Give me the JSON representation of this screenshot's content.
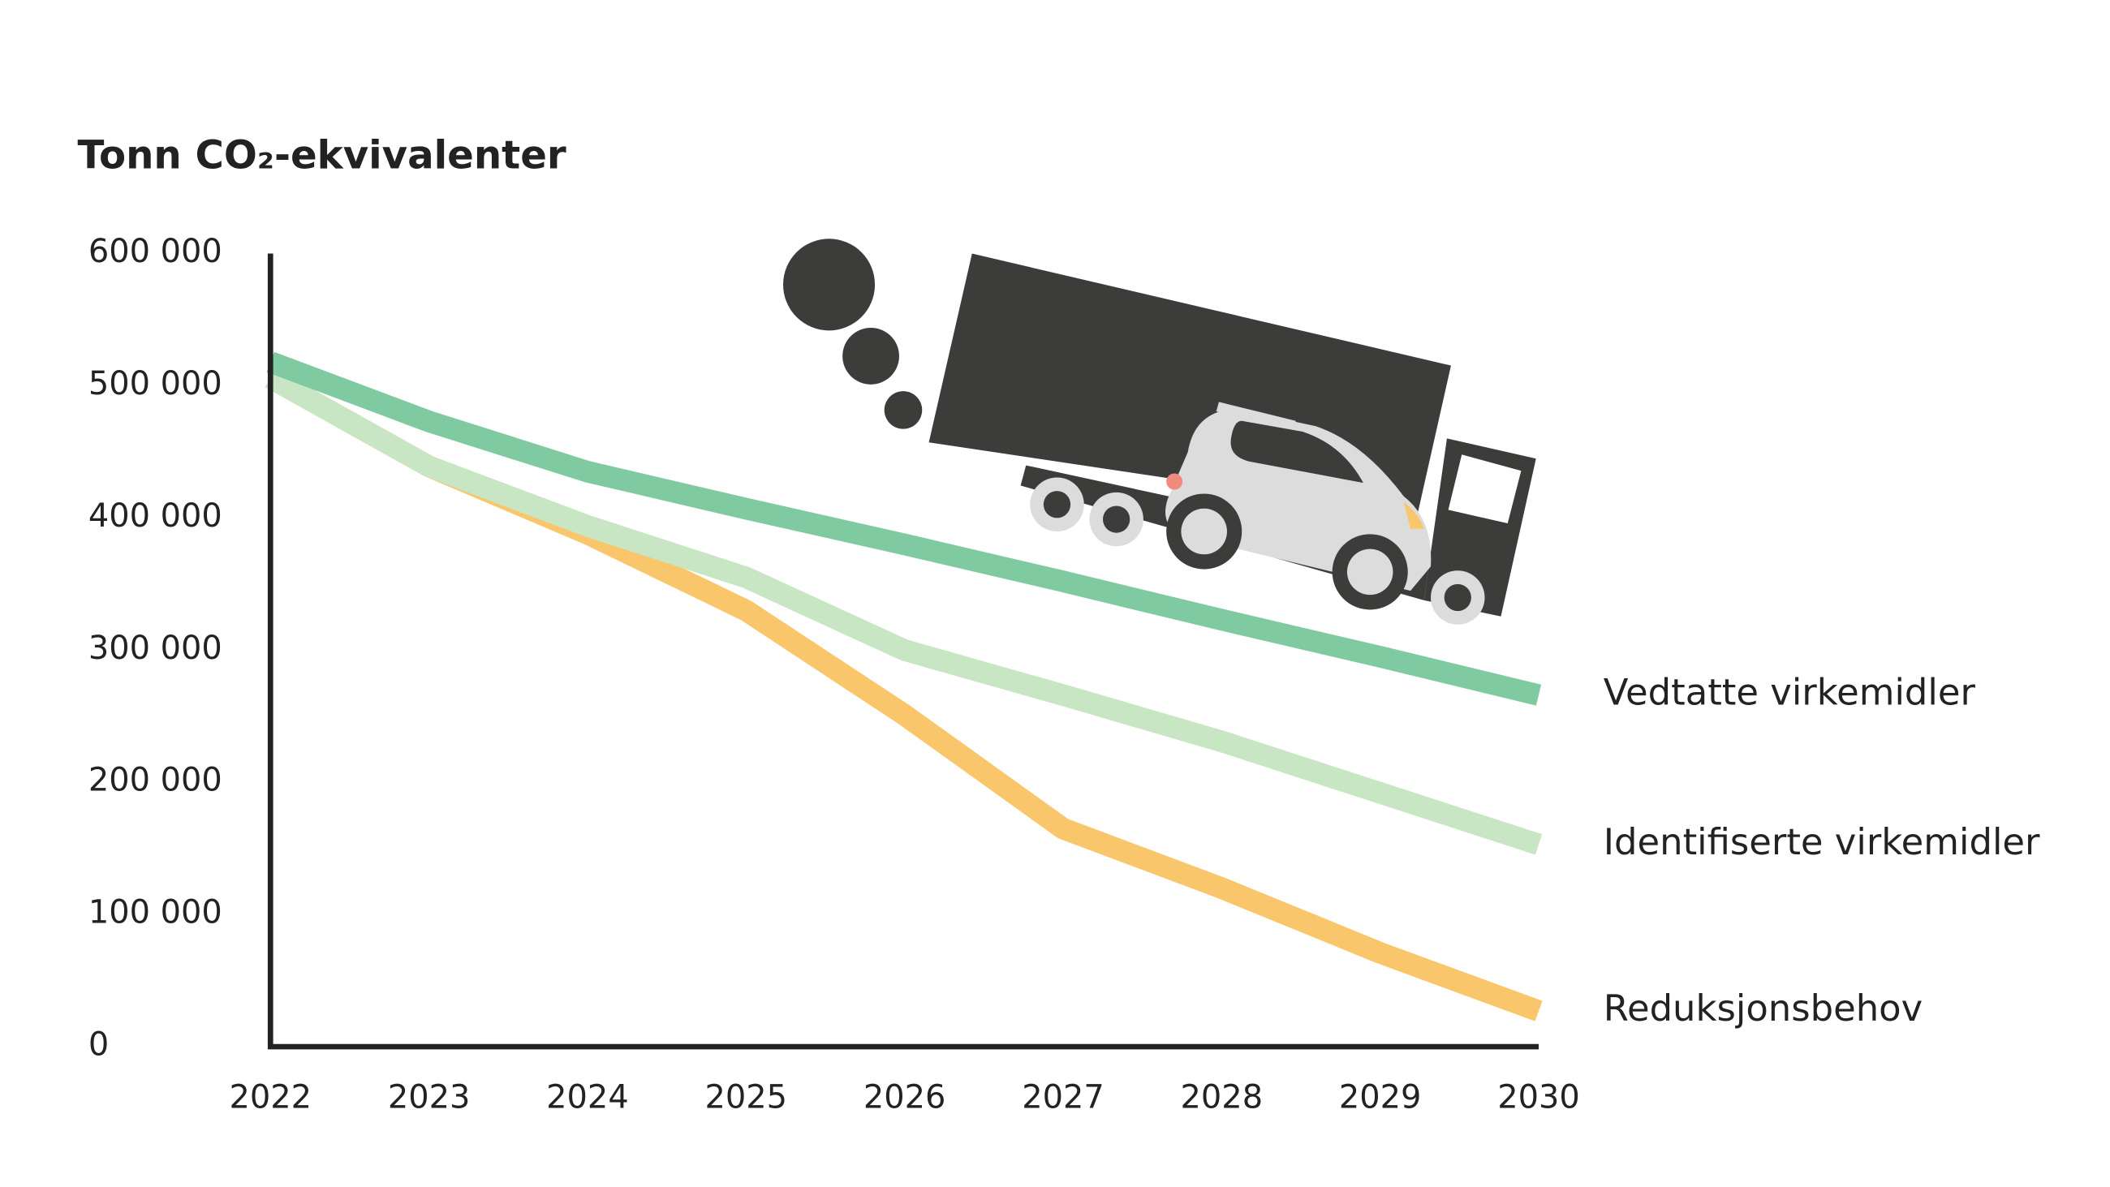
{
  "chart_data": {
    "type": "line",
    "title": "Tonn CO₂-ekvivalenter",
    "x": [
      2022,
      2023,
      2024,
      2025,
      2026,
      2027,
      2028,
      2029,
      2030
    ],
    "xlim": [
      2022,
      2030
    ],
    "xticks": [
      2022,
      2023,
      2024,
      2025,
      2026,
      2027,
      2028,
      2029,
      2030
    ],
    "ylim": [
      0,
      600000
    ],
    "yticks": [
      0,
      {
        "value": 100000,
        "label": "100 000"
      },
      {
        "value": 200000,
        "label": "200 000"
      },
      {
        "value": 300000,
        "label": "300 000"
      },
      {
        "value": 400000,
        "label": "400 000"
      },
      {
        "value": 500000,
        "label": "500 000"
      },
      {
        "value": 600000,
        "label": "600 000"
      }
    ],
    "series": [
      {
        "name": "Vedtatte virkemidler",
        "color": "#7fcaa0",
        "values": [
          518000,
          473000,
          435000,
          407000,
          380000,
          352000,
          323000,
          295000,
          266000
        ]
      },
      {
        "name": "Identifiserte virkemidler",
        "color": "#c8e6c4",
        "values": [
          506000,
          439000,
          394000,
          355000,
          300000,
          266000,
          231000,
          192000,
          153000
        ]
      },
      {
        "name": "Reduksjonsbehov",
        "color": "#f9c66b",
        "values": [
          506000,
          439000,
          388000,
          330000,
          251000,
          165000,
          120000,
          71000,
          27000
        ]
      }
    ]
  }
}
